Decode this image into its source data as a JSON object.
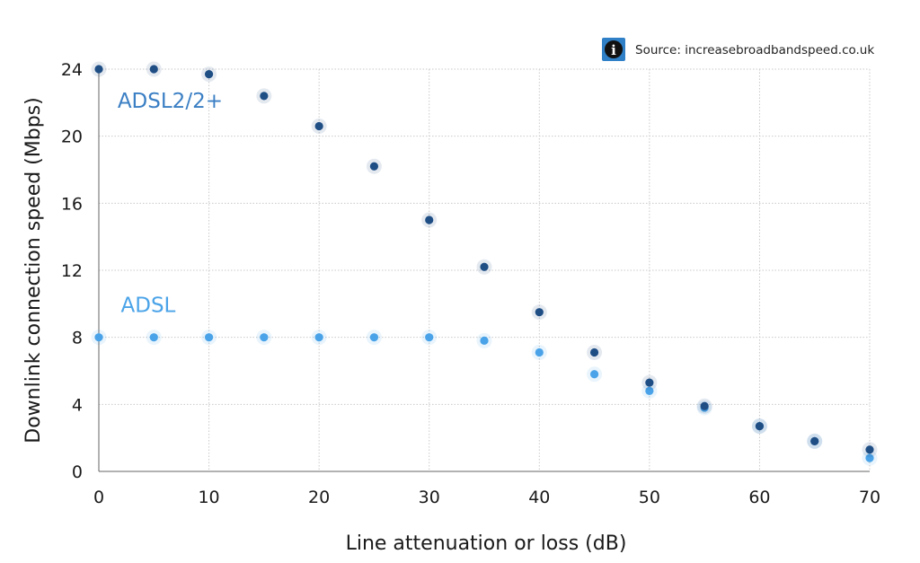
{
  "source": {
    "text": "Source: increasebroadbandspeed.co.uk",
    "icon": "info-icon",
    "icon_glyph": "i"
  },
  "chart_data": {
    "type": "scatter",
    "title": "",
    "xlabel": "Line attenuation or loss (dB)",
    "ylabel": "Downlink connection speed (Mbps)",
    "xlim": [
      0,
      70
    ],
    "ylim": [
      0,
      24
    ],
    "x_ticks": [
      0,
      10,
      20,
      30,
      40,
      50,
      60,
      70
    ],
    "y_ticks": [
      0,
      4,
      8,
      12,
      16,
      20,
      24
    ],
    "x_grid": [
      0,
      10,
      20,
      30,
      40,
      50,
      60,
      70
    ],
    "y_grid": [
      0,
      4,
      8,
      12,
      16,
      20,
      24
    ],
    "grid": true,
    "series": [
      {
        "name": "ADSL2/2+",
        "label": "ADSL2/2+",
        "color": "#1f4e85",
        "label_color": "#3b7fc4",
        "x": [
          0,
          5,
          10,
          15,
          20,
          25,
          30,
          35,
          40,
          45,
          50,
          55,
          60,
          65,
          70
        ],
        "y": [
          24,
          24,
          23.7,
          22.4,
          20.6,
          18.2,
          15,
          12.2,
          9.5,
          7.1,
          5.3,
          3.9,
          2.7,
          1.8,
          1.3
        ]
      },
      {
        "name": "ADSL",
        "label": "ADSL",
        "color": "#4aa3e8",
        "label_color": "#4aa3e8",
        "x": [
          0,
          5,
          10,
          15,
          20,
          25,
          30,
          35,
          40,
          45,
          50,
          55,
          60,
          65,
          70
        ],
        "y": [
          8,
          8,
          8,
          8,
          8,
          8,
          8,
          7.8,
          7.1,
          5.8,
          4.8,
          3.8,
          2.7,
          1.8,
          0.8
        ]
      }
    ],
    "series_label_positions": {
      "ADSL2/2+": {
        "x": 1.7,
        "y": 21.7
      },
      "ADSL": {
        "x": 2.0,
        "y": 9.5
      }
    }
  }
}
